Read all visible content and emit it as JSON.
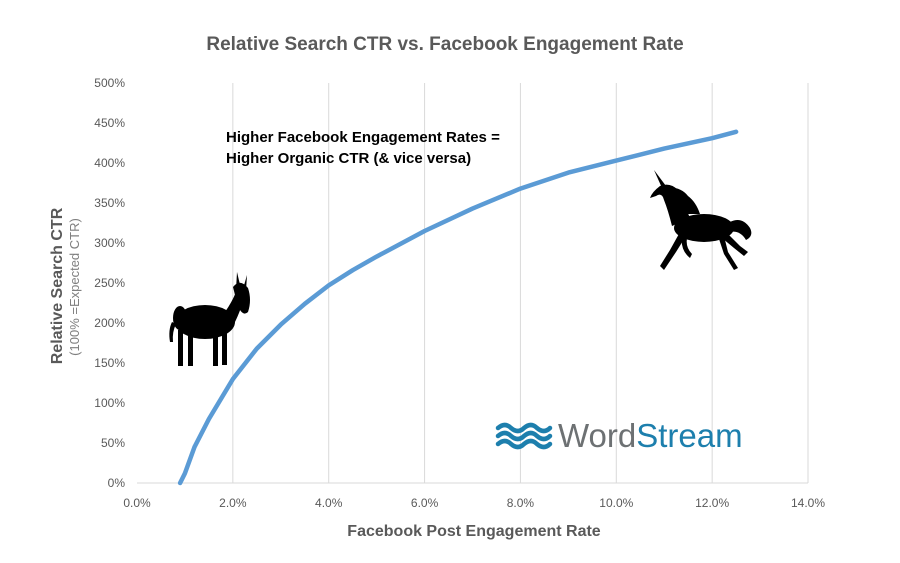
{
  "chart_data": {
    "type": "line",
    "title": "Relative Search CTR vs. Facebook Engagement Rate",
    "xlabel": "Facebook Post Engagement Rate",
    "ylabel": "Relative Search CTR",
    "ylabel_sub": "(100% =Expected CTR)",
    "xlim": [
      0,
      14
    ],
    "ylim": [
      0,
      500
    ],
    "x_ticks": [
      "0.0%",
      "2.0%",
      "4.0%",
      "6.0%",
      "8.0%",
      "10.0%",
      "12.0%",
      "14.0%"
    ],
    "y_ticks": [
      "0%",
      "50%",
      "100%",
      "150%",
      "200%",
      "250%",
      "300%",
      "350%",
      "400%",
      "450%",
      "500%"
    ],
    "grid": "vertical",
    "legend": "none",
    "series": [
      {
        "color": "#5b9bd5",
        "x": [
          0.9,
          1.0,
          1.2,
          1.5,
          2.0,
          2.5,
          3.0,
          3.5,
          4.0,
          4.5,
          5.0,
          6.0,
          7.0,
          8.0,
          9.0,
          10.0,
          11.0,
          12.0,
          12.5
        ],
        "y": [
          0,
          12,
          45,
          80,
          130,
          168,
          198,
          224,
          247,
          266,
          283,
          315,
          343,
          368,
          388,
          403,
          418,
          431,
          439
        ]
      }
    ],
    "annotation": [
      "Higher Facebook Engagement Rates =",
      "Higher Organic CTR (& vice versa)"
    ]
  },
  "images": {
    "left": "donkey-silhouette",
    "right": "unicorn-silhouette"
  },
  "logo": {
    "word": "Word",
    "stream": "Stream",
    "color": "#1d7fad"
  },
  "colors": {
    "line": "#5b9bd5",
    "grid": "#d9d9d9",
    "text": "#595959"
  }
}
